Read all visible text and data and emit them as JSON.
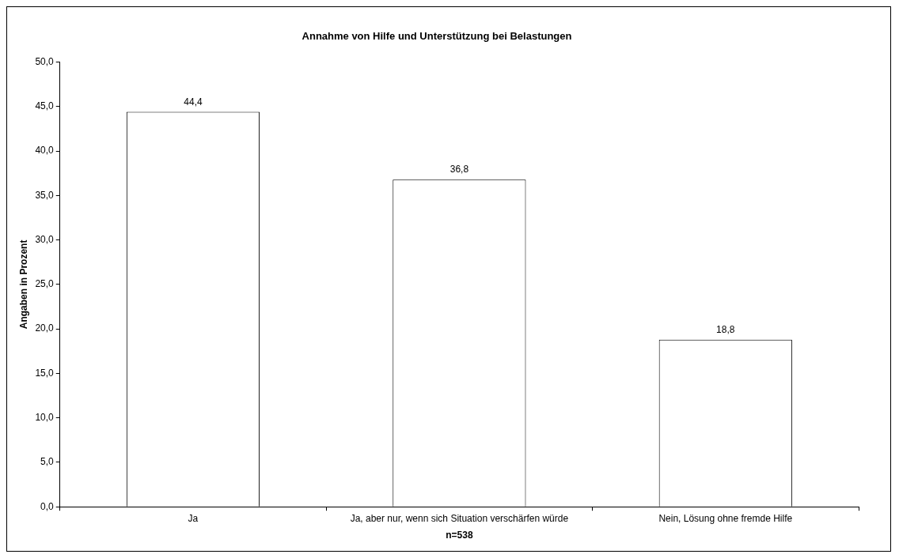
{
  "chart_data": {
    "type": "bar",
    "title": "Annahme von Hilfe und Unterstützung bei Belastungen",
    "xlabel": "n=538",
    "ylabel": "Angaben in Prozent",
    "categories": [
      "Ja",
      "Ja, aber nur, wenn sich Situation verschärfen würde",
      "Nein, Lösung ohne fremde Hilfe"
    ],
    "values": [
      44.4,
      36.8,
      18.8
    ],
    "value_labels": [
      "44,4",
      "36,8",
      "18,8"
    ],
    "color": "#ffffff",
    "ylim": [
      0,
      50
    ],
    "yticks": [
      {
        "value": 0,
        "label": "0,0"
      },
      {
        "value": 5,
        "label": "5,0"
      },
      {
        "value": 10,
        "label": "10,0"
      },
      {
        "value": 15,
        "label": "15,0"
      },
      {
        "value": 20,
        "label": "20,0"
      },
      {
        "value": 25,
        "label": "25,0"
      },
      {
        "value": 30,
        "label": "30,0"
      },
      {
        "value": 35,
        "label": "35,0"
      },
      {
        "value": 40,
        "label": "40,0"
      },
      {
        "value": 45,
        "label": "45,0"
      },
      {
        "value": 50,
        "label": "50,0"
      }
    ],
    "grid": false,
    "legend": false
  }
}
